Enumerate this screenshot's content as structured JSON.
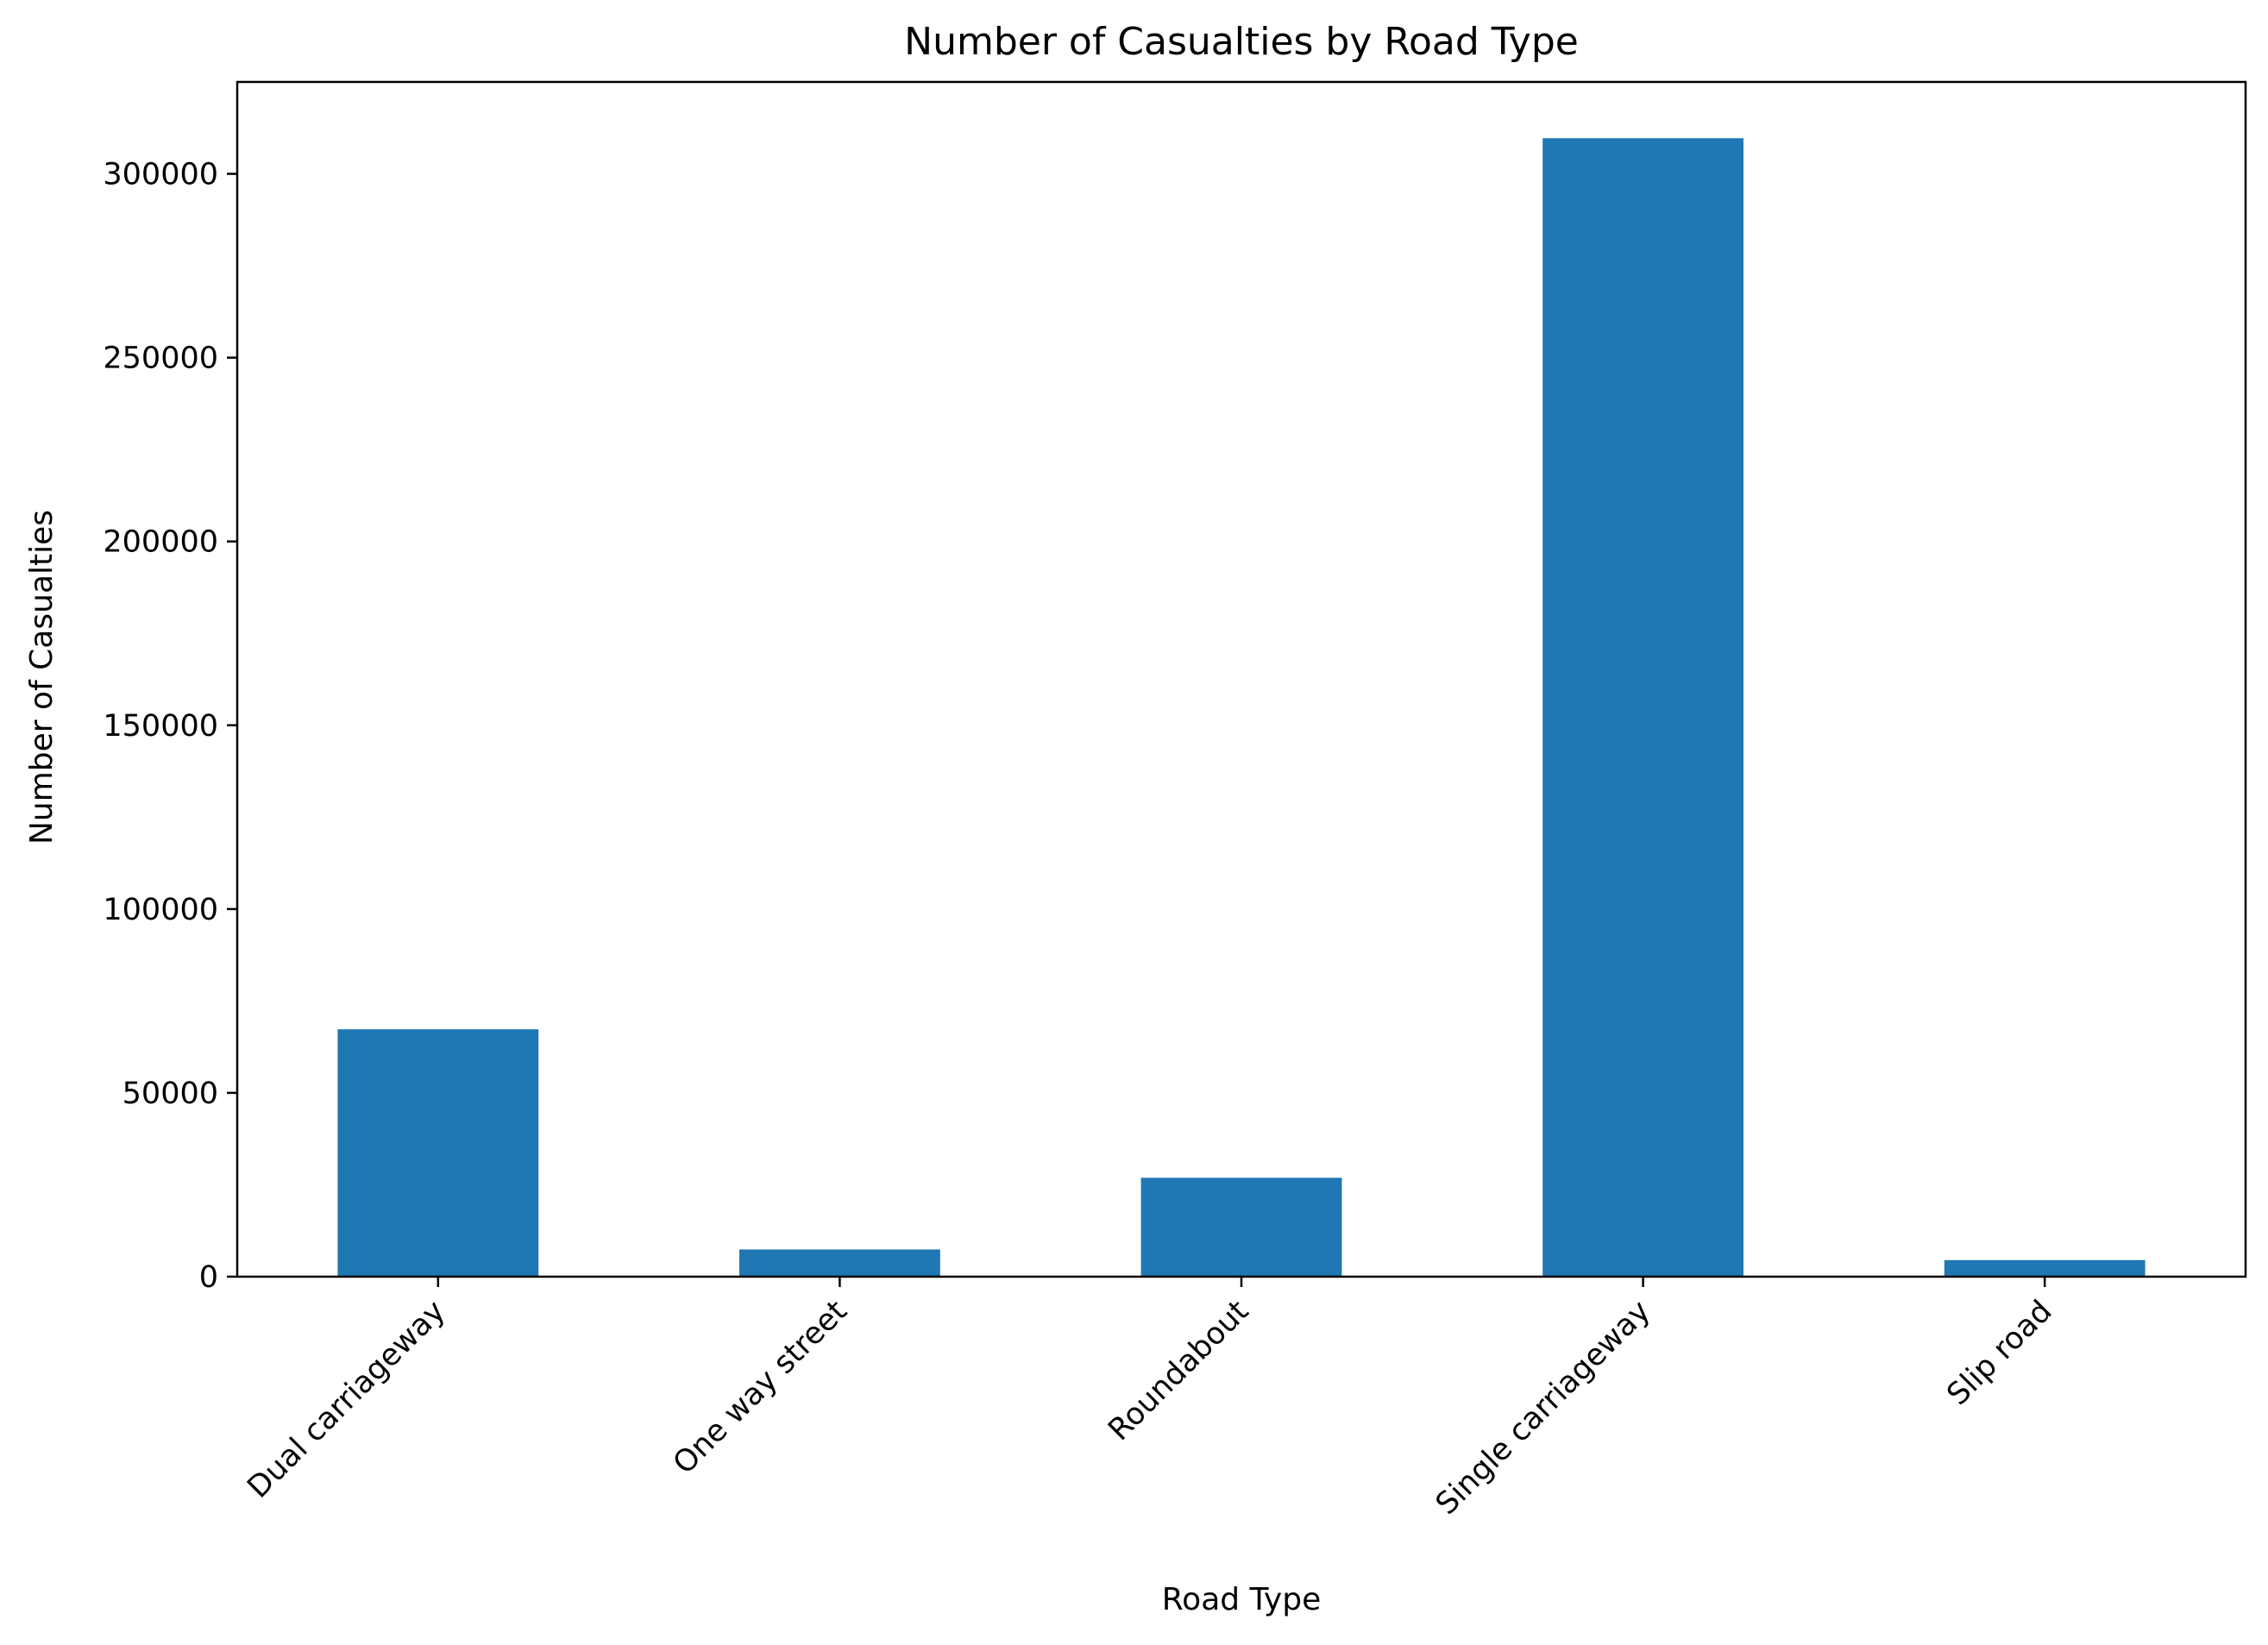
{
  "chart_data": {
    "type": "bar",
    "title": "Number of Casualties by Road Type",
    "xlabel": "Road Type",
    "ylabel": "Number of Casualties",
    "categories": [
      "Dual carriageway",
      "One way street",
      "Roundabout",
      "Single carriageway",
      "Slip road"
    ],
    "values": [
      67300,
      7400,
      26900,
      309700,
      4500
    ],
    "ylim": [
      0,
      325000
    ],
    "yticks": [
      0,
      50000,
      100000,
      150000,
      200000,
      250000,
      300000
    ],
    "ytick_labels": [
      "0",
      "50000",
      "100000",
      "150000",
      "200000",
      "250000",
      "300000"
    ],
    "grid": false,
    "legend": "none",
    "bar_color": "#1f77b4",
    "xtick_rotation_deg": 45
  }
}
